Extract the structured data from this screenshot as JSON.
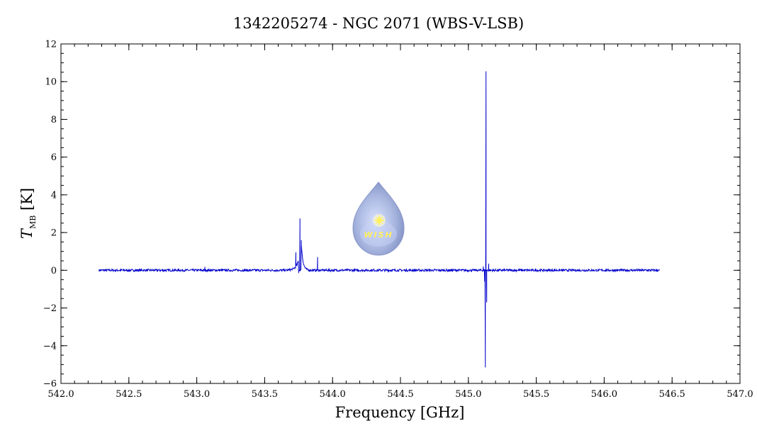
{
  "chart_data": {
    "type": "line",
    "title": "1342205274 - NGC 2071 (WBS-V-LSB)",
    "xlabel": "Frequency [GHz]",
    "ylabel_main": "T",
    "ylabel_sub": "MB",
    "ylabel_unit": "[K]",
    "xlim": [
      542.0,
      547.0
    ],
    "ylim": [
      -6,
      12
    ],
    "x_ticks": [
      "542.0",
      "542.5",
      "543.0",
      "543.5",
      "544.0",
      "544.5",
      "545.0",
      "545.5",
      "546.0",
      "546.5",
      "547.0"
    ],
    "y_ticks": [
      "−6",
      "−4",
      "−2",
      "0",
      "2",
      "4",
      "6",
      "8",
      "10",
      "12"
    ],
    "grid": false,
    "line_color": "#0000cc",
    "series": [
      {
        "x_range": [
          542.28,
          546.41
        ],
        "baseline": 0,
        "features": [
          {
            "x": 543.06,
            "y": 0.18
          },
          {
            "x": 543.73,
            "y": 0.75
          },
          {
            "x": 543.75,
            "y": -0.15
          },
          {
            "x": 543.76,
            "y": 2.75
          },
          {
            "x": 543.77,
            "y": 1.6
          },
          {
            "x": 543.89,
            "y": 0.7
          },
          {
            "x": 545.11,
            "y": 0.2
          },
          {
            "x": 545.12,
            "y": -0.6
          },
          {
            "x": 545.125,
            "y": -5.15
          },
          {
            "x": 545.13,
            "y": 10.55
          },
          {
            "x": 545.135,
            "y": -1.7
          },
          {
            "x": 545.15,
            "y": 0.35
          }
        ]
      }
    ]
  },
  "logo": {
    "label": "WISH",
    "body_color": "#a9b7e0",
    "star_color": "#fff060"
  }
}
